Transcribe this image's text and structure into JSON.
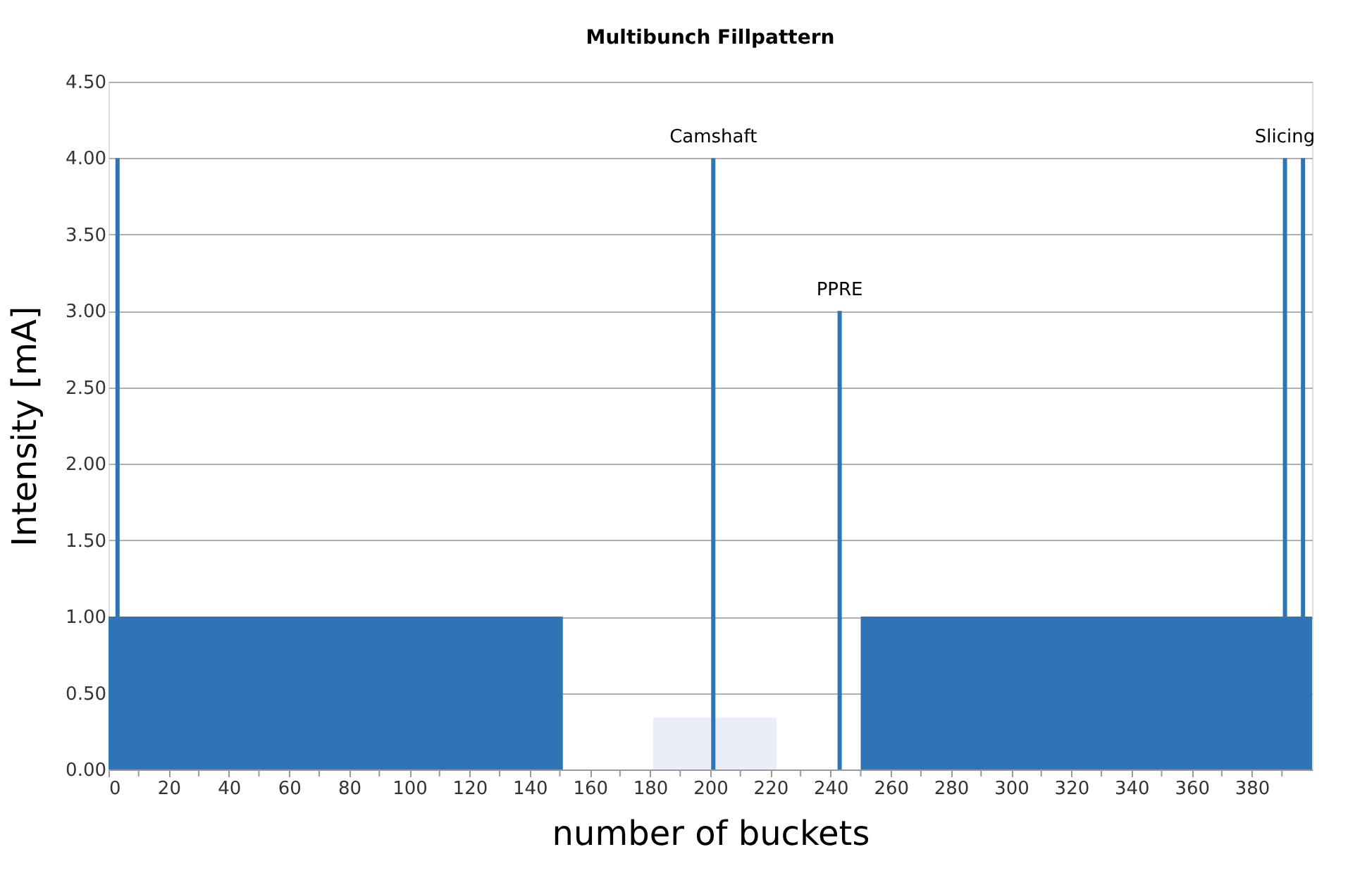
{
  "chart_data": {
    "type": "bar",
    "title": "Multibunch Fillpattern",
    "xlabel": "number of buckets",
    "ylabel": "Intensity [mA]",
    "series": [
      {
        "type": "area",
        "color": "#2e75b6",
        "x": [
          0,
          151,
          250,
          400
        ],
        "values": [
          1,
          0,
          1,
          1
        ]
      },
      {
        "type": "area",
        "color": "#e9eef8",
        "x": [
          181,
          222
        ],
        "values": [
          0.34,
          0.34
        ]
      },
      {
        "color": "#2e75b6",
        "x": [
          3,
          201,
          243,
          391,
          397
        ],
        "values": [
          4,
          4,
          3,
          4,
          4
        ]
      }
    ],
    "xlim": [
      0,
      400
    ],
    "xticks": [
      0,
      {
        "value": 10,
        "label": null
      },
      20,
      {
        "value": 30,
        "label": null
      },
      40,
      {
        "value": 50,
        "label": null
      },
      60,
      {
        "value": 70,
        "label": null
      },
      80,
      {
        "value": 90,
        "label": null
      },
      100,
      {
        "value": 110,
        "label": null
      },
      120,
      {
        "value": 130,
        "label": null
      },
      140,
      {
        "value": 150,
        "label": null
      },
      160,
      {
        "value": 170,
        "label": null
      },
      180,
      {
        "value": 190,
        "label": null
      },
      200,
      {
        "value": 210,
        "label": null
      },
      220,
      {
        "value": 230,
        "label": null
      },
      240,
      {
        "value": 250,
        "label": null
      },
      260,
      {
        "value": 270,
        "label": null
      },
      280,
      {
        "value": 290,
        "label": null
      },
      300,
      {
        "value": 310,
        "label": null
      },
      320,
      {
        "value": 330,
        "label": null
      },
      340,
      {
        "value": 350,
        "label": null
      },
      360,
      {
        "value": 370,
        "label": null
      },
      380,
      {
        "value": 390,
        "label": null
      }
    ],
    "ylim": [
      0,
      4.5
    ],
    "yticks": [
      {
        "value": 0,
        "label": "0.00"
      },
      {
        "value": 0.5,
        "label": "0.50"
      },
      {
        "value": 1,
        "label": "1.00"
      },
      {
        "value": 1.5,
        "label": "1.50"
      },
      {
        "value": 2,
        "label": "2.00"
      },
      {
        "value": 2.5,
        "label": "2.50"
      },
      {
        "value": 3,
        "label": "3.00"
      },
      {
        "value": 3.5,
        "label": "3.50"
      },
      {
        "value": 4,
        "label": "4.00"
      },
      {
        "value": 4.5,
        "label": "4.50"
      }
    ],
    "grid": "y",
    "annotations": [
      {
        "text": "Camshaft",
        "x": 201,
        "y": 4
      },
      {
        "text": "PPRE",
        "x": 243,
        "y": 3
      },
      {
        "text": "Slicing",
        "x": 391,
        "y": 4
      }
    ]
  }
}
